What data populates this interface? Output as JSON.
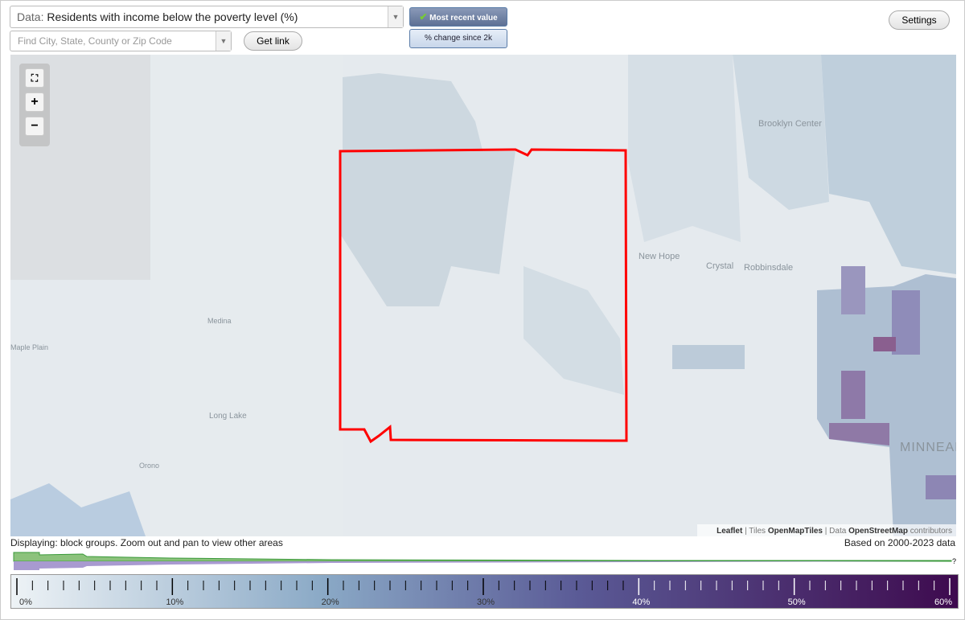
{
  "toolbar": {
    "data_label": "Data:",
    "data_value": "Residents with income below the poverty level (%)",
    "search_placeholder": "Find City, State, County or Zip Code",
    "get_link": "Get link",
    "mode_buttons": [
      "Most recent value",
      "% change since 2k"
    ],
    "settings": "Settings"
  },
  "map": {
    "labels": [
      "Brooklyn Center",
      "New Hope",
      "Crystal",
      "Robbinsdale",
      "Medina",
      "Maple Plain",
      "Long Lake",
      "Orono",
      "MINNEAPOLIS"
    ],
    "attribution": {
      "leaflet": "Leaflet",
      "tiles_prefix": "| Tiles",
      "tiles": "OpenMapTiles",
      "data_prefix": "| Data",
      "data": "OpenStreetMap",
      "suffix": "contributors"
    }
  },
  "footer": {
    "displaying": "Displaying: block groups. Zoom out and pan to view other areas",
    "based_on": "Based on 2000-2023 data",
    "help": "?"
  },
  "legend": {
    "ticks": [
      {
        "value": 0,
        "label": "0%"
      },
      {
        "value": 10,
        "label": "10%"
      },
      {
        "value": 20,
        "label": "20%"
      },
      {
        "value": 30,
        "label": "30%"
      },
      {
        "value": 40,
        "label": "40%"
      },
      {
        "value": 50,
        "label": "50%"
      },
      {
        "value": 60,
        "label": "60%"
      }
    ]
  }
}
